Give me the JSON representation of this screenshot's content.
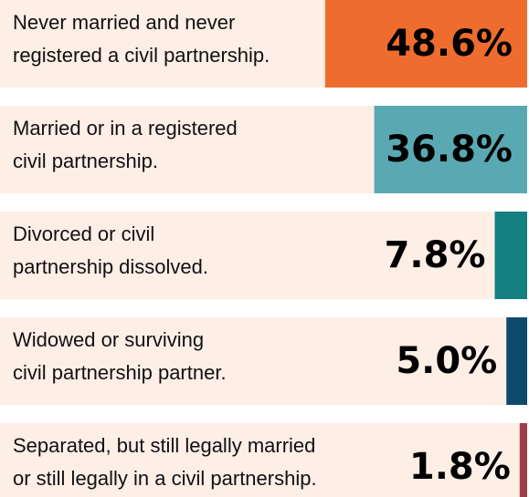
{
  "chart_data": {
    "type": "bar",
    "categories": [
      [
        "Never married and never",
        "registered a civil partnership."
      ],
      [
        "Married or in a registered",
        "civil partnership."
      ],
      [
        "Divorced or civil",
        "partnership dissolved."
      ],
      [
        "Widowed or surviving",
        "civil partnership partner."
      ],
      [
        "Separated, but still legally married",
        "or still legally in a civil partnership."
      ]
    ],
    "values": [
      48.6,
      36.8,
      7.8,
      5.0,
      1.8
    ],
    "value_labels": [
      "48.6%",
      "36.8%",
      "7.8%",
      "5.0%",
      "1.8%"
    ],
    "colors": [
      "#ee6d2e",
      "#5aa9b2",
      "#147f80",
      "#0e4a6d",
      "#9f3e4a"
    ]
  }
}
